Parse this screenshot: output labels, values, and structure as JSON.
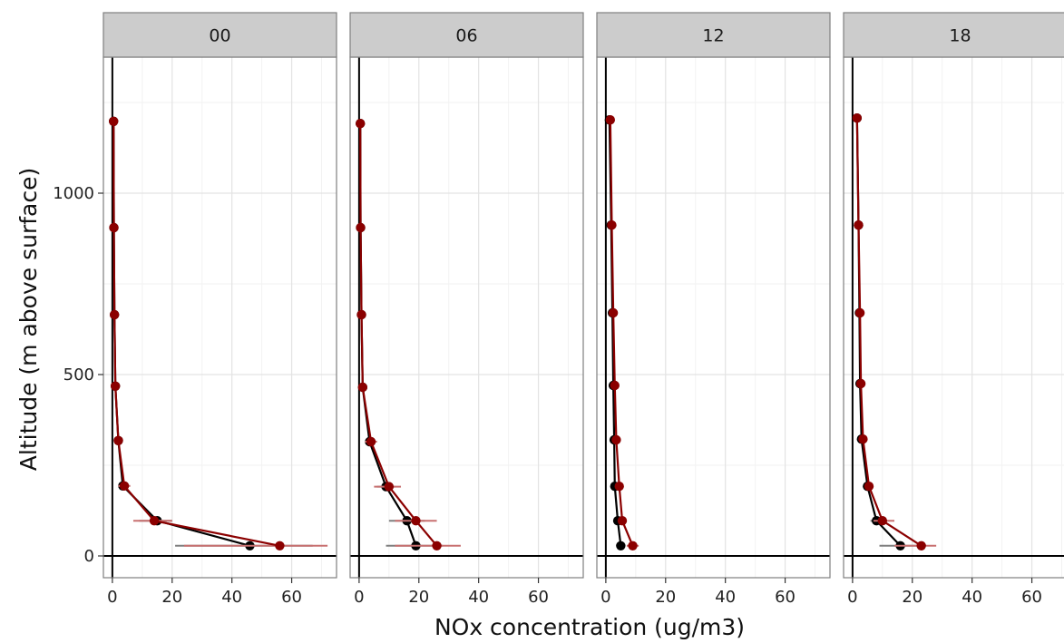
{
  "chart_data": {
    "type": "scatter",
    "title": "",
    "xlabel": "NOx concentration (ug/m3)",
    "ylabel": "Altitude (m above surface)",
    "xlim": [
      -3,
      75
    ],
    "ylim": [
      -60,
      1375
    ],
    "x_ticks": [
      0,
      20,
      40,
      60
    ],
    "y_ticks": [
      0,
      500,
      1000
    ],
    "grid": true,
    "legend": "none",
    "colors": {
      "series_black": "#000000",
      "series_red": "#8b0000",
      "err_black": "#7f7f7f",
      "err_red": "#c87070"
    },
    "panels": [
      {
        "label": "00",
        "series": [
          {
            "color": "#000000",
            "x": [
              46,
              15,
              3.5,
              2,
              1,
              0.7,
              0.5,
              0.4
            ],
            "y": [
              28,
              97,
              193,
              318,
              468,
              665,
              905,
              1198
            ],
            "xerr": [
              [
                21,
                67
              ],
              [
                9,
                20
              ],
              [
                2,
                5
              ],
              [
                1.2,
                3
              ],
              [
                0.5,
                1.5
              ],
              [
                0.3,
                1.1
              ],
              [
                0.2,
                0.8
              ],
              [
                0.2,
                0.6
              ]
            ]
          },
          {
            "color": "#8b0000",
            "x": [
              56,
              14,
              4,
              2,
              1,
              0.7,
              0.5,
              0.4
            ],
            "y": [
              28,
              97,
              193,
              318,
              468,
              665,
              905,
              1198
            ],
            "xerr": [
              [
                24,
                72
              ],
              [
                7,
                20
              ],
              [
                2,
                6
              ],
              [
                1.2,
                3
              ],
              [
                0.5,
                1.5
              ],
              [
                0.3,
                1.1
              ],
              [
                0.2,
                0.8
              ],
              [
                0.2,
                0.6
              ]
            ]
          }
        ]
      },
      {
        "label": "06",
        "series": [
          {
            "color": "#000000",
            "x": [
              19,
              16,
              9,
              3.5,
              1.2,
              0.8,
              0.5,
              0.4
            ],
            "y": [
              28,
              97,
              191,
              315,
              465,
              665,
              905,
              1192
            ],
            "xerr": [
              [
                9,
                28
              ],
              [
                10,
                22
              ],
              [
                6,
                12
              ],
              [
                2,
                5
              ],
              [
                0.6,
                2
              ],
              [
                0.4,
                1.2
              ],
              [
                0.2,
                0.8
              ],
              [
                0.2,
                0.6
              ]
            ]
          },
          {
            "color": "#8b0000",
            "x": [
              26,
              19,
              10,
              4,
              1.2,
              0.8,
              0.5,
              0.4
            ],
            "y": [
              28,
              97,
              191,
              315,
              465,
              665,
              905,
              1192
            ],
            "xerr": [
              [
                12,
                34
              ],
              [
                12,
                26
              ],
              [
                5,
                14
              ],
              [
                2,
                6
              ],
              [
                0.6,
                2
              ],
              [
                0.4,
                1.2
              ],
              [
                0.2,
                0.8
              ],
              [
                0.2,
                0.6
              ]
            ]
          }
        ]
      },
      {
        "label": "12",
        "series": [
          {
            "color": "#000000",
            "x": [
              5,
              4,
              3,
              2.8,
              2.5,
              2.2,
              1.8,
              1.2
            ],
            "y": [
              28,
              97,
              192,
              320,
              470,
              670,
              912,
              1202
            ],
            "xerr": [
              [
                3.5,
                6.5
              ],
              [
                3,
                5
              ],
              [
                2,
                4
              ],
              [
                2,
                3.6
              ],
              [
                1.8,
                3.2
              ],
              [
                1.6,
                2.8
              ],
              [
                1.2,
                2.4
              ],
              [
                0.8,
                1.6
              ]
            ]
          },
          {
            "color": "#8b0000",
            "x": [
              9,
              5.5,
              4.5,
              3.5,
              3,
              2.5,
              2,
              1.5
            ],
            "y": [
              28,
              97,
              192,
              320,
              470,
              670,
              912,
              1202
            ],
            "xerr": [
              [
                7,
                11
              ],
              [
                4,
                7
              ],
              [
                3.5,
                5.5
              ],
              [
                2.6,
                4.4
              ],
              [
                2.2,
                3.8
              ],
              [
                1.8,
                3.2
              ],
              [
                1.4,
                2.6
              ],
              [
                1,
                2
              ]
            ]
          }
        ]
      },
      {
        "label": "18",
        "series": [
          {
            "color": "#000000",
            "x": [
              16,
              8,
              5,
              3,
              2.5,
              2.3,
              2,
              1.5
            ],
            "y": [
              28,
              97,
              192,
              322,
              475,
              670,
              912,
              1207
            ],
            "xerr": [
              [
                9,
                23
              ],
              [
                6,
                11
              ],
              [
                3.5,
                6.5
              ],
              [
                2.2,
                3.8
              ],
              [
                1.8,
                3.2
              ],
              [
                1.6,
                3
              ],
              [
                1.4,
                2.6
              ],
              [
                1,
                2
              ]
            ]
          },
          {
            "color": "#8b0000",
            "x": [
              23,
              10,
              5.5,
              3.5,
              2.8,
              2.5,
              2,
              1.5
            ],
            "y": [
              28,
              97,
              192,
              322,
              475,
              670,
              912,
              1207
            ],
            "xerr": [
              [
                14,
                28
              ],
              [
                7,
                14
              ],
              [
                4,
                7
              ],
              [
                2.6,
                4.4
              ],
              [
                2,
                3.6
              ],
              [
                1.8,
                3.2
              ],
              [
                1.4,
                2.6
              ],
              [
                1,
                2
              ]
            ]
          }
        ]
      }
    ]
  }
}
